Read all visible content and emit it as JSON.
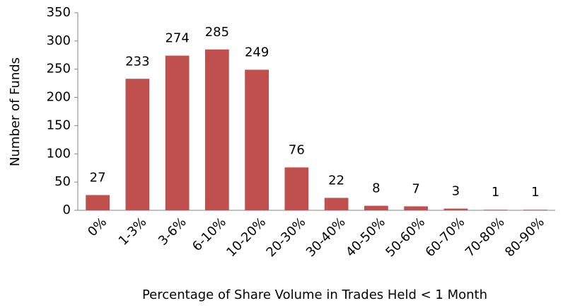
{
  "chart_data": {
    "type": "bar",
    "categories": [
      "0%",
      "1-3%",
      "3-6%",
      "6-10%",
      "10-20%",
      "20-30%",
      "30-40%",
      "40-50%",
      "50-60%",
      "60-70%",
      "70-80%",
      "80-90%"
    ],
    "values": [
      27,
      233,
      274,
      285,
      249,
      76,
      22,
      8,
      7,
      3,
      1,
      1
    ],
    "color": "#c0504d",
    "xlabel": "Percentage of Share Volume in Trades Held < 1 Month",
    "ylabel": "Number of Funds",
    "ylim": [
      0,
      350
    ],
    "yticks": [
      0,
      50,
      100,
      150,
      200,
      250,
      300,
      350
    ],
    "grid": false
  }
}
